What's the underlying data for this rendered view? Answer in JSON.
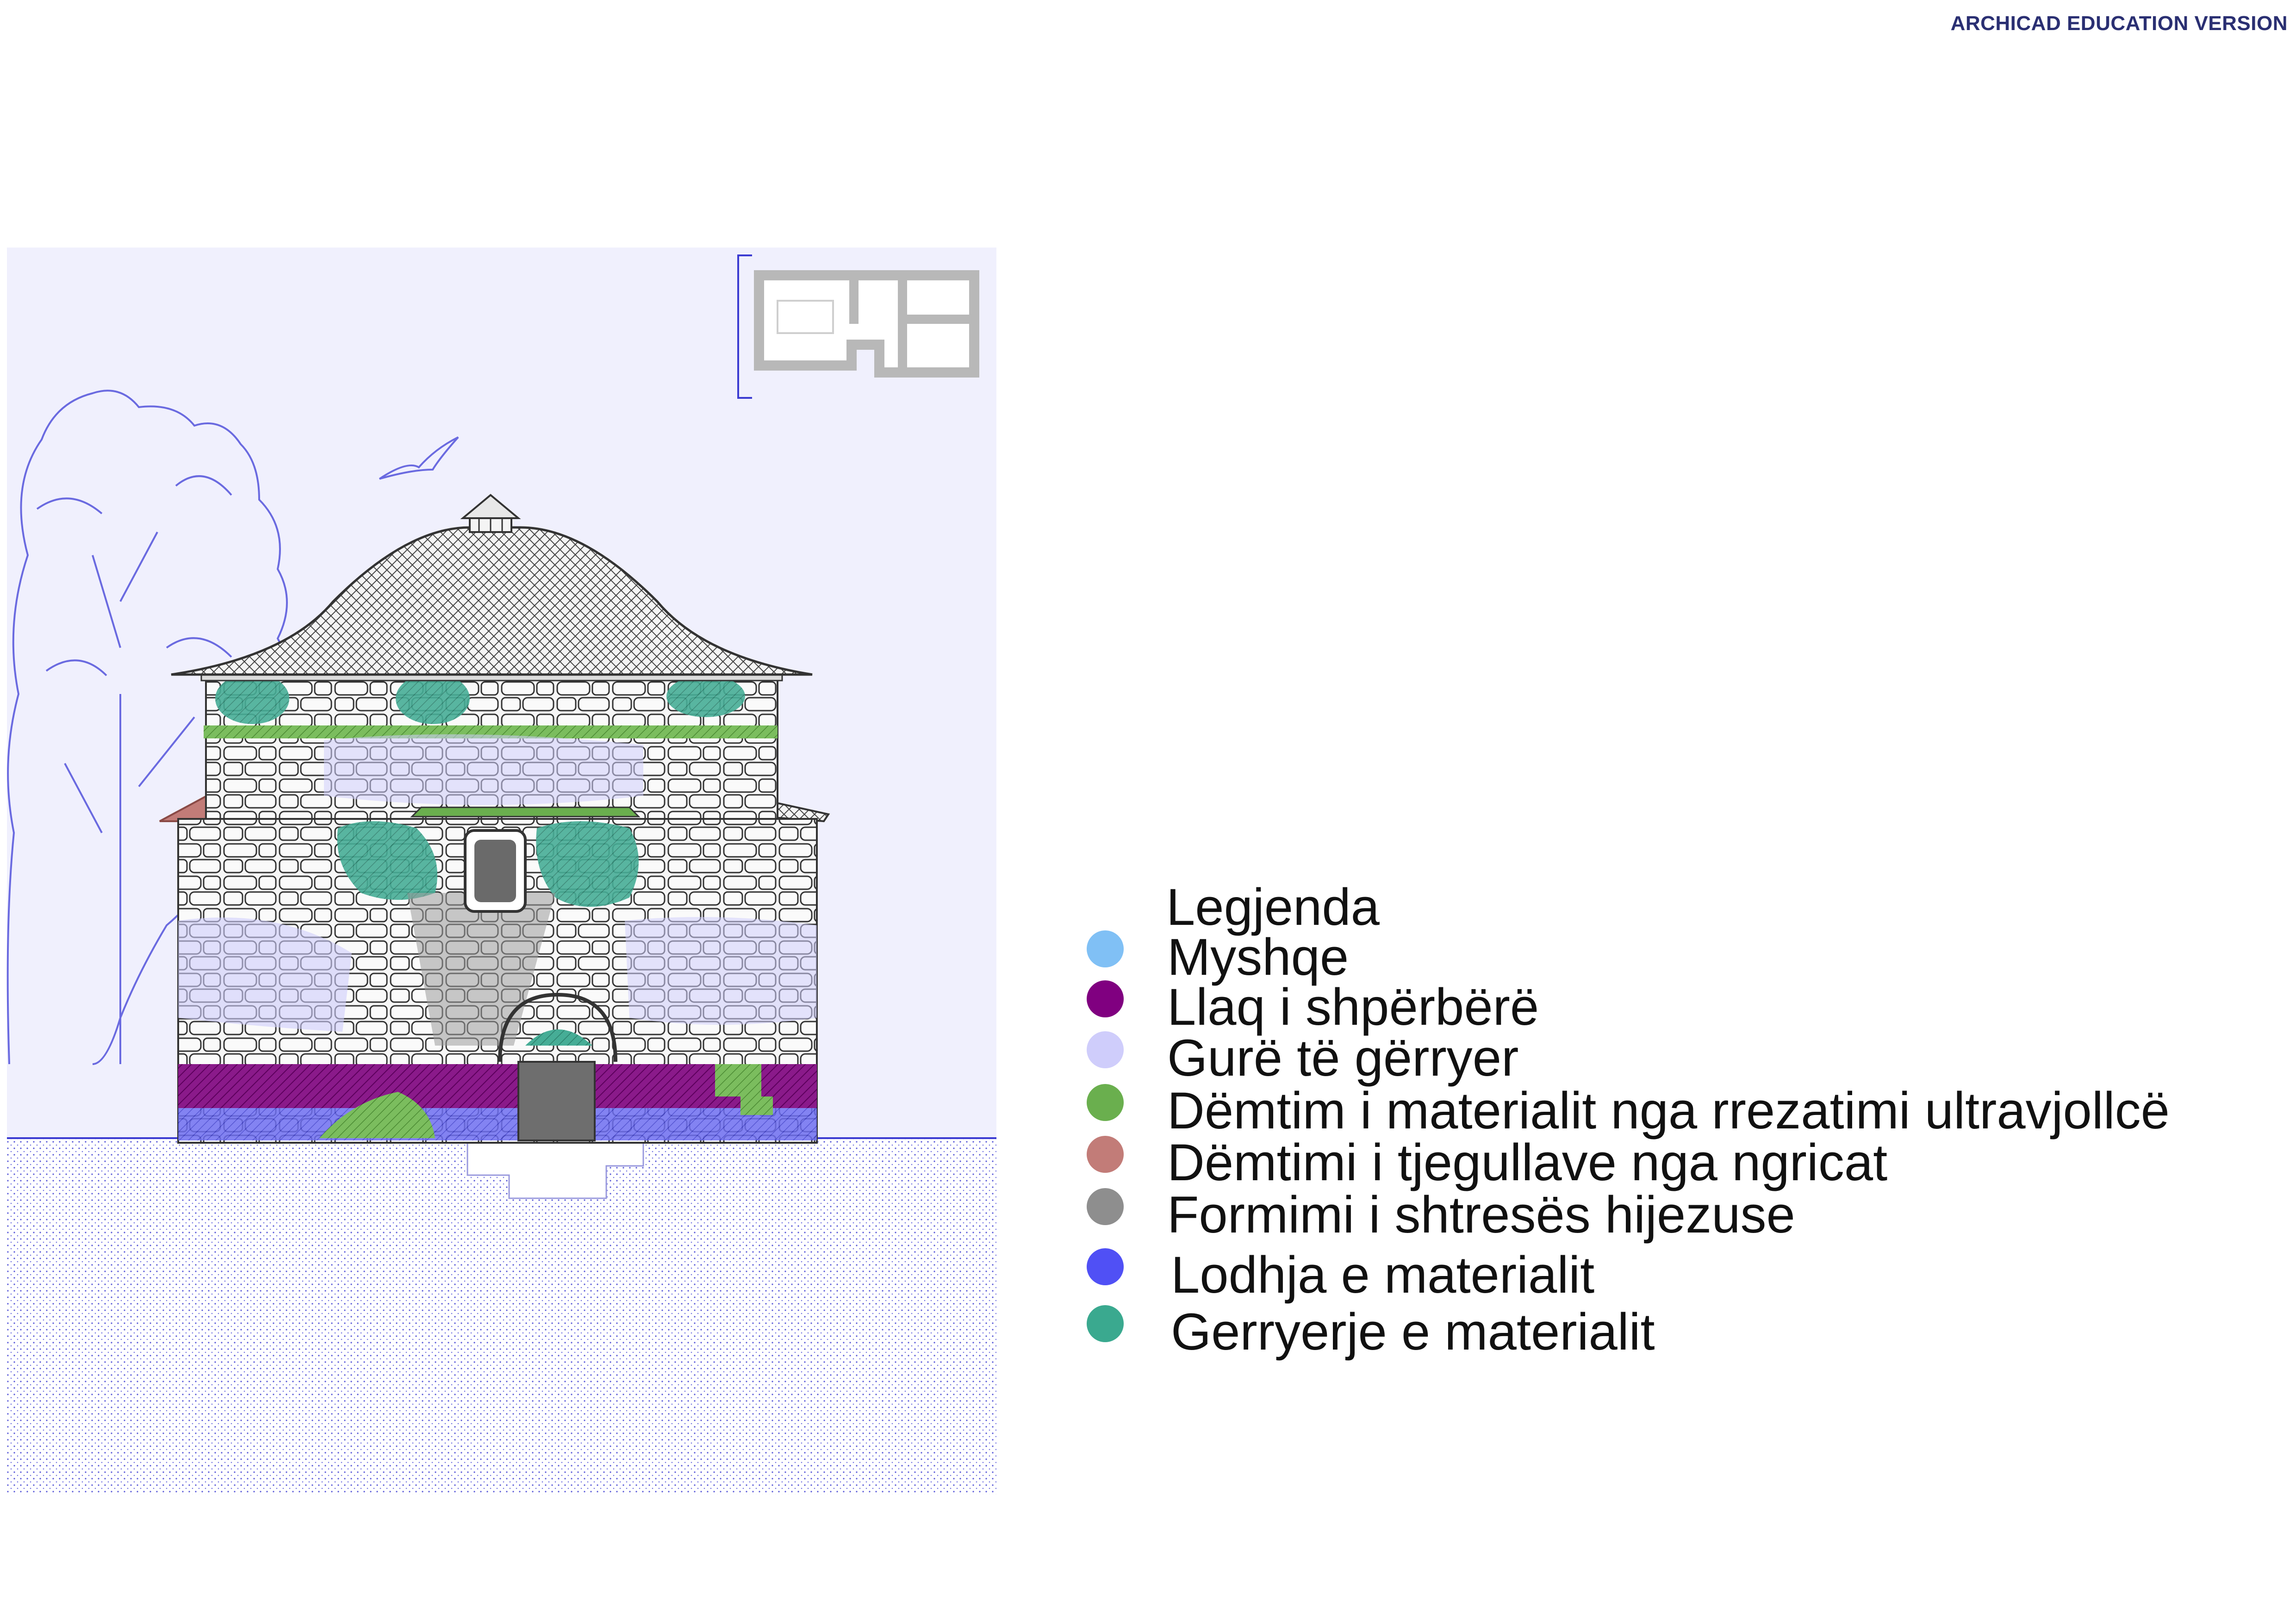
{
  "watermark": "ARCHICAD EDUCATION VERSION",
  "legend": {
    "title": "Legjenda",
    "items": [
      {
        "label": "Myshqe",
        "color": "#80c0f5"
      },
      {
        "label": "Llaq i shpërbërë",
        "color": "#800080"
      },
      {
        "label": "Gurë të gërryer",
        "color": "#cfcdfb"
      },
      {
        "label": "Dëmtim i materialit nga rrezatimi ultravjollcë",
        "color": "#6aaf4e"
      },
      {
        "label": "Dëmtimi i tjegullave nga ngricat",
        "color": "#c27c78"
      },
      {
        "label": "Formimi i shtresës hijezuse",
        "color": "#8e8e8e"
      },
      {
        "label": "Lodhja e materialit",
        "color": "#5050f5"
      },
      {
        "label": "Gerryerje e materialit",
        "color": "#3aa98f"
      }
    ]
  },
  "drawing": {
    "sky_color": "#f0f0fd",
    "ground_color": "#ffffff",
    "line_color": "#3c3cd2"
  }
}
